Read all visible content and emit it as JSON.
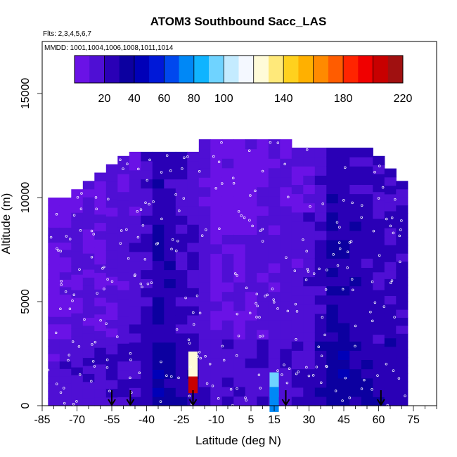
{
  "chart_data": {
    "type": "heatmap",
    "title": "ATOM3 Southbound Sacc_LAS",
    "subtitle_flights": "Flts: 2,3,4,5,6,7",
    "subtitle_dates": "MMDD: 1001,1004,1006,1008,1011,1014",
    "xlabel": "Latitude (deg N)",
    "ylabel": "Altitude (m)",
    "xlim": [
      -85,
      85
    ],
    "ylim": [
      0,
      17500
    ],
    "x_ticks": [
      -85,
      -70,
      -55,
      -40,
      -25,
      -10,
      5,
      15,
      30,
      45,
      60,
      75
    ],
    "y_ticks": [
      0,
      5000,
      10000,
      15000
    ],
    "colorbar": {
      "range": [
        0,
        220
      ],
      "tick_values": [
        20,
        40,
        60,
        80,
        100,
        140,
        180,
        220
      ],
      "colors": [
        "#6a12e6",
        "#4f0fd4",
        "#2a00b6",
        "#0c00a0",
        "#0000b8",
        "#0018d8",
        "#0048ee",
        "#0088f6",
        "#10b4ff",
        "#6fd3ff",
        "#c4ebff",
        "#f4f8ff",
        "#fffbd8",
        "#ffe97a",
        "#ffd11e",
        "#ffb000",
        "#ff8a00",
        "#ff5c00",
        "#ff2400",
        "#f00000",
        "#c80000",
        "#a01010"
      ]
    },
    "profile_arrows_lat": [
      -55,
      -47,
      -20,
      20,
      61
    ],
    "columns": [
      {
        "lat": -80,
        "top": 10000,
        "base": 0,
        "mean": 8
      },
      {
        "lat": -75,
        "top": 10000,
        "base": 0,
        "mean": 10
      },
      {
        "lat": -70,
        "top": 10400,
        "base": 0,
        "mean": 12
      },
      {
        "lat": -65,
        "top": 10800,
        "base": 0,
        "mean": 12
      },
      {
        "lat": -60,
        "top": 11200,
        "base": 0,
        "mean": 12
      },
      {
        "lat": -55,
        "top": 11600,
        "base": 0,
        "mean": 14
      },
      {
        "lat": -50,
        "top": 12000,
        "base": 0,
        "mean": 14
      },
      {
        "lat": -45,
        "top": 12200,
        "base": 0,
        "mean": 16
      },
      {
        "lat": -40,
        "top": 12200,
        "base": 0,
        "mean": 22
      },
      {
        "lat": -35,
        "top": 12200,
        "base": 0,
        "mean": 30
      },
      {
        "lat": -30,
        "top": 12200,
        "base": 0,
        "mean": 26
      },
      {
        "lat": -25,
        "top": 12200,
        "base": 0,
        "mean": 22
      },
      {
        "lat": -20,
        "top": 12200,
        "base": 0,
        "mean": 20
      },
      {
        "lat": -15,
        "top": 12800,
        "base": 0,
        "mean": 14
      },
      {
        "lat": -10,
        "top": 12800,
        "base": 0,
        "mean": 10
      },
      {
        "lat": -5,
        "top": 12800,
        "base": 0,
        "mean": 10
      },
      {
        "lat": 0,
        "top": 12800,
        "base": 0,
        "mean": 10
      },
      {
        "lat": 5,
        "top": 12800,
        "base": 0,
        "mean": 10
      },
      {
        "lat": 10,
        "top": 12800,
        "base": 0,
        "mean": 12
      },
      {
        "lat": 15,
        "top": 12800,
        "base": 0,
        "mean": 14
      },
      {
        "lat": 20,
        "top": 12800,
        "base": 0,
        "mean": 14
      },
      {
        "lat": 25,
        "top": 12400,
        "base": 0,
        "mean": 14
      },
      {
        "lat": 30,
        "top": 12400,
        "base": 0,
        "mean": 16
      },
      {
        "lat": 35,
        "top": 12400,
        "base": 0,
        "mean": 22
      },
      {
        "lat": 40,
        "top": 12400,
        "base": 0,
        "mean": 30
      },
      {
        "lat": 45,
        "top": 12400,
        "base": 0,
        "mean": 30
      },
      {
        "lat": 50,
        "top": 12400,
        "base": 0,
        "mean": 26
      },
      {
        "lat": 55,
        "top": 12400,
        "base": 0,
        "mean": 24
      },
      {
        "lat": 60,
        "top": 12000,
        "base": 0,
        "mean": 22
      },
      {
        "lat": 65,
        "top": 11400,
        "base": 0,
        "mean": 20
      },
      {
        "lat": 70,
        "top": 10800,
        "base": 0,
        "mean": 22
      }
    ],
    "hotspots": [
      {
        "lat": -20,
        "alt": 1200,
        "value": 200
      },
      {
        "lat": -20,
        "alt": 2000,
        "value": 120
      },
      {
        "lat": 15,
        "alt": 1000,
        "value": 90
      },
      {
        "lat": 15,
        "alt": 300,
        "value": 70
      }
    ]
  }
}
